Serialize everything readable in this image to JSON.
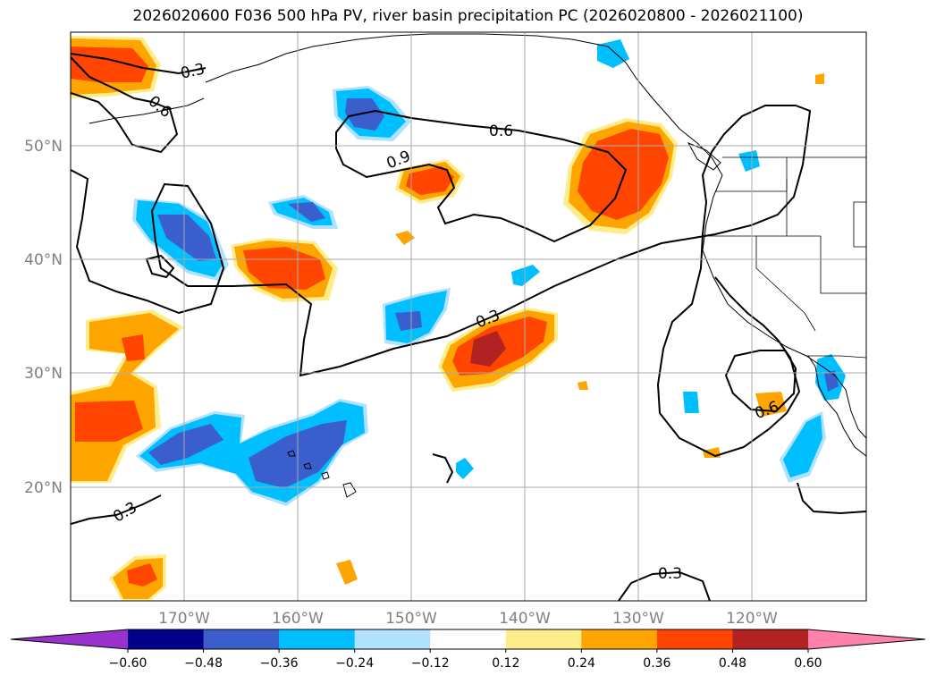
{
  "title": "2026020600 F036 500 hPa PV, river basin precipitation PC (2026020800 - 2026021100)",
  "lon_ticks": [
    "170°W",
    "160°W",
    "150°W",
    "140°W",
    "130°W",
    "120°W"
  ],
  "lat_ticks": [
    "50°N",
    "40°N",
    "30°N",
    "20°N"
  ],
  "colorbar": {
    "ticks": [
      "−0.60",
      "−0.48",
      "−0.36",
      "−0.24",
      "−0.12",
      "0.12",
      "0.24",
      "0.36",
      "0.48",
      "0.60"
    ],
    "colors": [
      "#9932cc",
      "#00008b",
      "#3a5fcd",
      "#00bfff",
      "#b0e2ff",
      "#ffffff",
      "#ffec8b",
      "#ffa500",
      "#ff4500",
      "#b22222",
      "#ff82ab"
    ]
  },
  "contour_labels": [
    "0.3",
    "0.6",
    "0.6",
    "0.9",
    "0.3",
    "0.3",
    "0.6",
    "0.3"
  ],
  "chart_data": {
    "type": "map",
    "projection": "cylindrical",
    "extent": {
      "lon": [
        -180,
        -110
      ],
      "lat": [
        10,
        60
      ]
    },
    "grid": true,
    "shaded_field": "river basin precipitation PC",
    "contour_field": "500 hPa PV",
    "levels": [
      -0.6,
      -0.48,
      -0.36,
      -0.24,
      -0.12,
      0.12,
      0.24,
      0.36,
      0.48,
      0.6
    ],
    "contour_levels": [
      0.3,
      0.6,
      0.9
    ]
  }
}
